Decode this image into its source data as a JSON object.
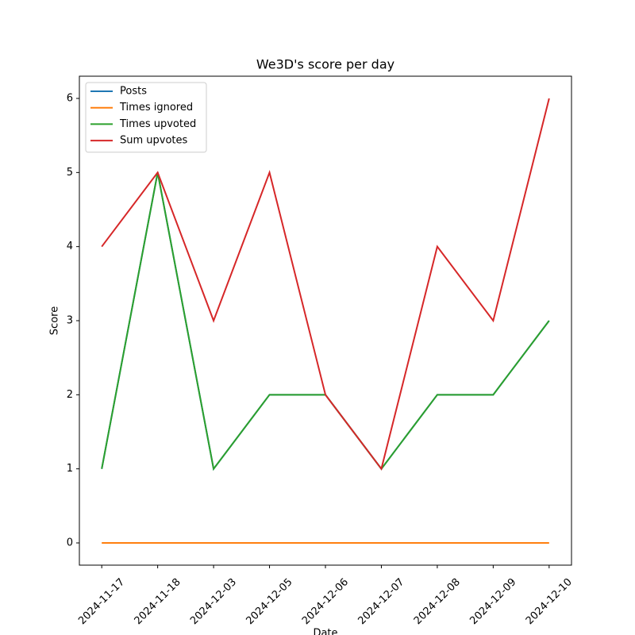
{
  "chart_data": {
    "type": "line",
    "title": "We3D's score per day",
    "x_label": "Date",
    "y_label": "Score",
    "categories": [
      "2024-11-17",
      "2024-11-18",
      "2024-12-03",
      "2024-12-05",
      "2024-12-06",
      "2024-12-07",
      "2024-12-08",
      "2024-12-09",
      "2024-12-10"
    ],
    "series": [
      {
        "name": "Posts",
        "color": "#1f77b4",
        "values": [
          1,
          5,
          1,
          2,
          2,
          1,
          2,
          2,
          3
        ]
      },
      {
        "name": "Times ignored",
        "color": "#ff7f0e",
        "values": [
          0,
          0,
          0,
          0,
          0,
          0,
          0,
          0,
          0
        ]
      },
      {
        "name": "Times upvoted",
        "color": "#2ca02c",
        "values": [
          1,
          5,
          1,
          2,
          2,
          1,
          2,
          2,
          3
        ]
      },
      {
        "name": "Sum upvotes",
        "color": "#d62728",
        "values": [
          4,
          5,
          3,
          5,
          2,
          1,
          4,
          3,
          6
        ]
      }
    ],
    "ylim": [
      -0.3,
      6.3
    ],
    "yticks": [
      0,
      1,
      2,
      3,
      4,
      5,
      6
    ],
    "grid": false,
    "legend": "upper left"
  }
}
